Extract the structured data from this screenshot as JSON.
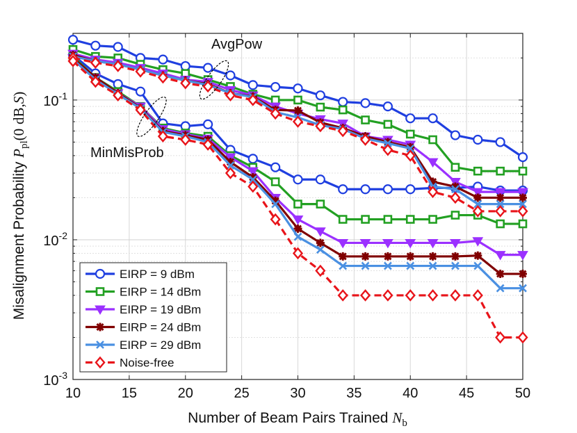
{
  "chart_data": {
    "type": "line",
    "title": "",
    "xlabel": "Number of Beam Pairs Trained",
    "xlabel_symbol": "N",
    "xlabel_subscript": "b",
    "ylabel": "Misalignment Probability",
    "ylabel_symbol": "P",
    "ylabel_subscript": "pl",
    "ylabel_args": "(0 dB, 𝒮)",
    "ylabel_args_open": "(",
    "ylabel_args_zero": "0",
    "ylabel_args_db": "dB",
    "ylabel_args_comma": ",",
    "ylabel_args_set": "S",
    "ylabel_args_close": ")",
    "xlim": [
      10,
      50
    ],
    "ylim": [
      0.001,
      0.3
    ],
    "yscale": "log",
    "x_ticks": [
      10,
      15,
      20,
      25,
      30,
      35,
      40,
      45,
      50
    ],
    "x_tick_labels": [
      "10",
      "15",
      "20",
      "25",
      "30",
      "35",
      "40",
      "45",
      "50"
    ],
    "y_ticks": [
      {
        "value": 0.001,
        "base": "10",
        "exp": "-3"
      },
      {
        "value": 0.01,
        "base": "10",
        "exp": "-2"
      },
      {
        "value": 0.1,
        "base": "10",
        "exp": "-1"
      }
    ],
    "grid": true,
    "legend_position": "bottom-left",
    "annotations": [
      {
        "text": "AvgPow",
        "x": 22.5,
        "y": 0.13
      },
      {
        "text": "MinMisProb",
        "x": 17.7,
        "y": 0.073
      }
    ],
    "x": [
      10,
      12,
      14,
      16,
      18,
      20,
      22,
      24,
      26,
      28,
      30,
      32,
      34,
      36,
      38,
      40,
      42,
      44,
      46,
      48,
      50
    ],
    "series": [
      {
        "name": "EIRP = 9 dBm",
        "group": "AvgPow",
        "color": "#1f3fe0",
        "marker": "circle",
        "dashed": false,
        "values": [
          0.27,
          0.245,
          0.24,
          0.2,
          0.195,
          0.175,
          0.17,
          0.15,
          0.128,
          0.124,
          0.121,
          0.108,
          0.097,
          0.095,
          0.09,
          0.074,
          0.074,
          0.056,
          0.052,
          0.05,
          0.039
        ]
      },
      {
        "name": "EIRP = 9 dBm",
        "group": "MinMisProb",
        "color": "#1f3fe0",
        "marker": "circle",
        "dashed": false,
        "values": [
          0.21,
          0.155,
          0.13,
          0.115,
          0.068,
          0.065,
          0.067,
          0.044,
          0.038,
          0.033,
          0.027,
          0.027,
          0.023,
          0.023,
          0.023,
          0.023,
          0.0235,
          0.0235,
          0.024,
          0.0225,
          0.0225
        ]
      },
      {
        "name": "EIRP = 14 dBm",
        "group": "AvgPow",
        "color": "#22a022",
        "marker": "square",
        "dashed": false,
        "values": [
          0.23,
          0.205,
          0.2,
          0.18,
          0.165,
          0.155,
          0.14,
          0.125,
          0.11,
          0.1,
          0.1,
          0.089,
          0.085,
          0.072,
          0.067,
          0.057,
          0.052,
          0.033,
          0.031,
          0.031,
          0.031
        ]
      },
      {
        "name": "EIRP = 14 dBm",
        "group": "MinMisProb",
        "color": "#22a022",
        "marker": "square",
        "dashed": false,
        "values": [
          0.205,
          0.145,
          0.115,
          0.09,
          0.063,
          0.058,
          0.055,
          0.04,
          0.033,
          0.026,
          0.018,
          0.018,
          0.014,
          0.014,
          0.014,
          0.014,
          0.014,
          0.015,
          0.015,
          0.013,
          0.013
        ]
      },
      {
        "name": "EIRP = 19 dBm",
        "group": "AvgPow",
        "color": "#9b30ff",
        "marker": "triangle-down",
        "dashed": false,
        "values": [
          0.215,
          0.195,
          0.185,
          0.17,
          0.155,
          0.14,
          0.135,
          0.118,
          0.108,
          0.09,
          0.08,
          0.073,
          0.068,
          0.055,
          0.052,
          0.048,
          0.036,
          0.026,
          0.022,
          0.022,
          0.022
        ]
      },
      {
        "name": "EIRP = 19 dBm",
        "group": "MinMisProb",
        "color": "#9b30ff",
        "marker": "triangle-down",
        "dashed": false,
        "values": [
          0.2,
          0.145,
          0.112,
          0.09,
          0.062,
          0.057,
          0.053,
          0.039,
          0.031,
          0.02,
          0.014,
          0.0115,
          0.0095,
          0.0095,
          0.0095,
          0.0095,
          0.0095,
          0.0095,
          0.0098,
          0.0078,
          0.0078
        ]
      },
      {
        "name": "EIRP = 24 dBm",
        "group": "AvgPow",
        "color": "#800000",
        "marker": "star",
        "dashed": false,
        "values": [
          0.21,
          0.19,
          0.18,
          0.165,
          0.15,
          0.138,
          0.13,
          0.112,
          0.106,
          0.085,
          0.084,
          0.069,
          0.063,
          0.055,
          0.05,
          0.046,
          0.026,
          0.024,
          0.02,
          0.02,
          0.02
        ]
      },
      {
        "name": "EIRP = 24 dBm",
        "group": "MinMisProb",
        "color": "#800000",
        "marker": "star",
        "dashed": false,
        "values": [
          0.2,
          0.145,
          0.112,
          0.088,
          0.06,
          0.056,
          0.052,
          0.036,
          0.028,
          0.019,
          0.012,
          0.0095,
          0.0076,
          0.0076,
          0.0076,
          0.0076,
          0.0076,
          0.0076,
          0.0077,
          0.0057,
          0.0057
        ]
      },
      {
        "name": "EIRP = 29 dBm",
        "group": "AvgPow",
        "color": "#4a90e2",
        "marker": "x",
        "dashed": false,
        "values": [
          0.205,
          0.19,
          0.18,
          0.165,
          0.15,
          0.138,
          0.128,
          0.112,
          0.105,
          0.082,
          0.075,
          0.066,
          0.062,
          0.053,
          0.049,
          0.045,
          0.024,
          0.023,
          0.018,
          0.018,
          0.018
        ]
      },
      {
        "name": "EIRP = 29 dBm",
        "group": "MinMisProb",
        "color": "#4a90e2",
        "marker": "x",
        "dashed": false,
        "values": [
          0.195,
          0.14,
          0.11,
          0.087,
          0.059,
          0.055,
          0.05,
          0.034,
          0.027,
          0.018,
          0.0105,
          0.0085,
          0.0065,
          0.0065,
          0.0065,
          0.0065,
          0.0065,
          0.0065,
          0.0065,
          0.0045,
          0.0045
        ]
      },
      {
        "name": "Noise-free",
        "group": "AvgPow",
        "color": "#e8141a",
        "marker": "diamond",
        "dashed": true,
        "values": [
          0.2,
          0.185,
          0.175,
          0.16,
          0.145,
          0.132,
          0.125,
          0.108,
          0.1,
          0.08,
          0.07,
          0.065,
          0.06,
          0.052,
          0.044,
          0.04,
          0.022,
          0.02,
          0.016,
          0.016,
          0.016
        ]
      },
      {
        "name": "Noise-free",
        "group": "MinMisProb",
        "color": "#e8141a",
        "marker": "diamond",
        "dashed": true,
        "values": [
          0.19,
          0.135,
          0.108,
          0.085,
          0.055,
          0.052,
          0.048,
          0.03,
          0.024,
          0.014,
          0.008,
          0.006,
          0.004,
          0.004,
          0.004,
          0.004,
          0.004,
          0.004,
          0.004,
          0.002,
          0.002
        ]
      }
    ],
    "legend": [
      {
        "label": "EIRP = 9 dBm",
        "color": "#1f3fe0",
        "marker": "circle",
        "dashed": false
      },
      {
        "label": "EIRP = 14 dBm",
        "color": "#22a022",
        "marker": "square",
        "dashed": false
      },
      {
        "label": "EIRP = 19 dBm",
        "color": "#9b30ff",
        "marker": "triangle-down",
        "dashed": false
      },
      {
        "label": "EIRP = 24 dBm",
        "color": "#800000",
        "marker": "star",
        "dashed": false
      },
      {
        "label": "EIRP = 29 dBm",
        "color": "#4a90e2",
        "marker": "x",
        "dashed": false
      },
      {
        "label": "Noise-free",
        "color": "#e8141a",
        "marker": "diamond",
        "dashed": true
      }
    ]
  }
}
